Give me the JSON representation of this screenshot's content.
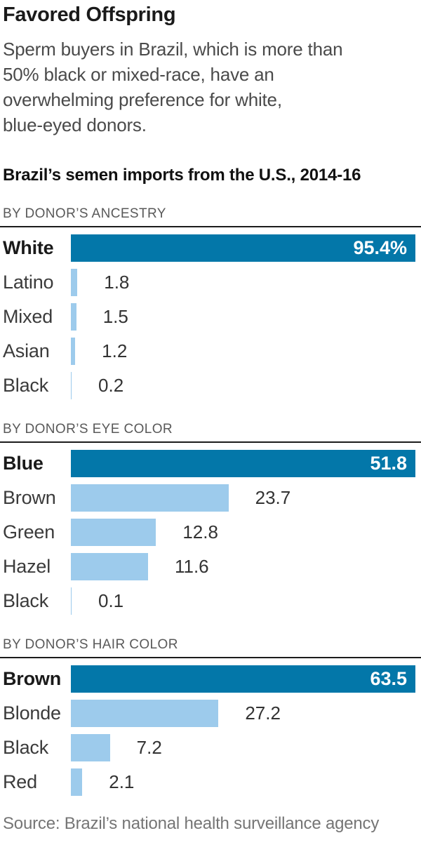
{
  "header": {
    "title": "Favored Offspring",
    "description": "Sperm buyers in Brazil, which is more than\n50% black or mixed-race, have an\noverwhelming preference for white,\nblue-eyed donors.",
    "chart_title": "Brazil’s semen imports from the U.S., 2014-16"
  },
  "source": "Source: Brazil’s national health surveillance agency",
  "colors": {
    "highlight_bar": "#0377a9",
    "bar": "#9dcbec",
    "rule": "#1c1c1c"
  },
  "chart_data": [
    {
      "type": "bar",
      "orientation": "horizontal",
      "section_label": "BY DONOR’S ANCESTRY",
      "categories": [
        "White",
        "Latino",
        "Mixed",
        "Asian",
        "Black"
      ],
      "values": [
        95.4,
        1.8,
        1.5,
        1.2,
        0.2
      ],
      "value_labels": [
        "95.4%",
        "1.8",
        "1.5",
        "1.2",
        "0.2"
      ],
      "highlight_index": 0,
      "xlim": [
        0,
        95.4
      ],
      "grid": false,
      "legend": false
    },
    {
      "type": "bar",
      "orientation": "horizontal",
      "section_label": "BY DONOR’S EYE COLOR",
      "categories": [
        "Blue",
        "Brown",
        "Green",
        "Hazel",
        "Black"
      ],
      "values": [
        51.8,
        23.7,
        12.8,
        11.6,
        0.1
      ],
      "value_labels": [
        "51.8",
        "23.7",
        "12.8",
        "11.6",
        "0.1"
      ],
      "highlight_index": 0,
      "xlim": [
        0,
        51.8
      ],
      "grid": false,
      "legend": false
    },
    {
      "type": "bar",
      "orientation": "horizontal",
      "section_label": "BY DONOR’S HAIR COLOR",
      "categories": [
        "Brown",
        "Blonde",
        "Black",
        "Red"
      ],
      "values": [
        63.5,
        27.2,
        7.2,
        2.1
      ],
      "value_labels": [
        "63.5",
        "27.2",
        "7.2",
        "2.1"
      ],
      "highlight_index": 0,
      "xlim": [
        0,
        63.5
      ],
      "grid": false,
      "legend": false
    }
  ]
}
